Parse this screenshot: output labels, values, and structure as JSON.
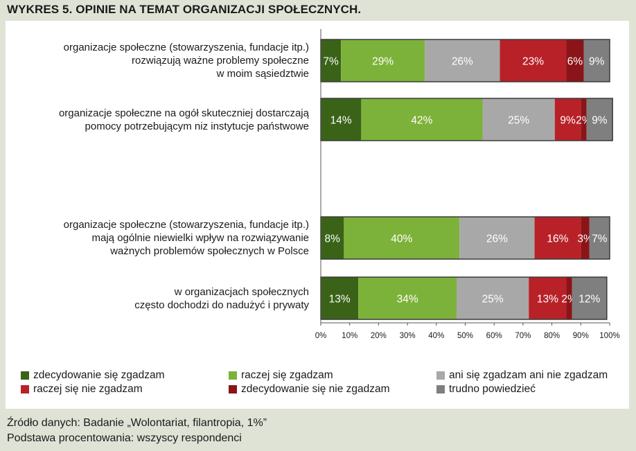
{
  "title": "WYKRES 5. OPINIE NA TEMAT ORGANIZACJI SPOŁECZNYCH.",
  "chart_data": {
    "type": "bar",
    "orientation": "horizontal",
    "stacked": true,
    "categories": [
      [
        "organizacje społeczne (stowarzyszenia, fundacje itp.)",
        "rozwiązują ważne problemy społeczne",
        "w moim sąsiedztwie"
      ],
      [
        "organizacje społeczne na ogół skuteczniej dostarczają",
        "pomocy potrzebującym niz instytucje państwowe"
      ],
      [
        "organizacje społeczne (stowarzyszenia, fundacje itp.)",
        "mają ogólnie niewielki wpływ na rozwiązywanie",
        "ważnych problemów społecznych w Polsce"
      ],
      [
        "w organizacjach społecznych",
        "często dochodzi do nadużyć i prywaty"
      ]
    ],
    "series": [
      {
        "name": "zdecydowanie się zgadzam",
        "color": "#3a6318",
        "values": [
          7,
          14,
          8,
          13
        ]
      },
      {
        "name": "raczej się zgadzam",
        "color": "#7db23a",
        "values": [
          29,
          42,
          40,
          34
        ]
      },
      {
        "name": "ani się zgadzam ani nie zgadzam",
        "color": "#a8a8a8",
        "values": [
          26,
          25,
          26,
          25
        ]
      },
      {
        "name": "raczej się nie zgadzam",
        "color": "#b82128",
        "values": [
          23,
          9,
          16,
          13
        ]
      },
      {
        "name": "zdecydowanie się nie zgadzam",
        "color": "#8a1418",
        "values": [
          6,
          2,
          3,
          2
        ]
      },
      {
        "name": "trudno powiedzieć",
        "color": "#7f7f7f",
        "values": [
          9,
          9,
          7,
          12
        ]
      }
    ],
    "xlim": [
      0,
      100
    ],
    "xticks": [
      "0%",
      "10%",
      "20%",
      "30%",
      "40%",
      "50%",
      "60%",
      "70%",
      "80%",
      "90%",
      "100%"
    ],
    "legend_position": "bottom",
    "grid": false
  },
  "notes": {
    "source": "Źródło danych: Badanie „Wolontariat, filantropia, 1%”",
    "base": "Podstawa procentowania: wszyscy respondenci"
  }
}
